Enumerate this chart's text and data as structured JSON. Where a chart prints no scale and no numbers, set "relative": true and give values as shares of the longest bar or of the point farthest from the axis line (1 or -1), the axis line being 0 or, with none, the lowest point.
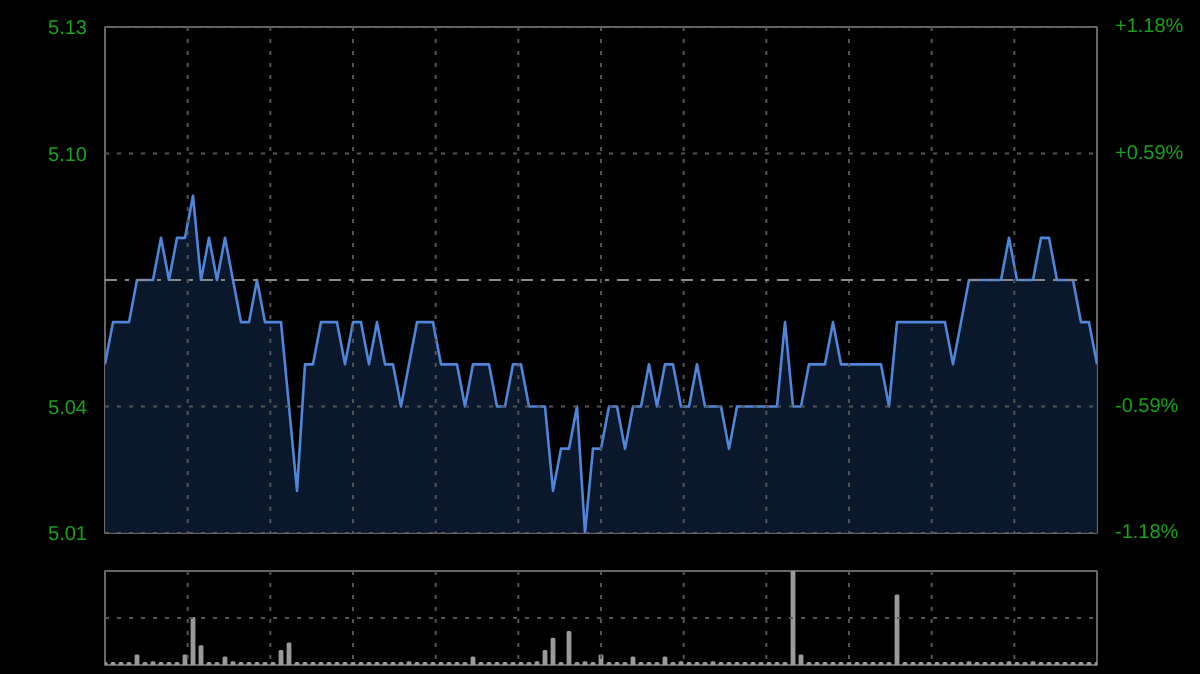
{
  "chart_data": [
    {
      "type": "area",
      "categories": [
        null,
        null,
        null,
        null,
        null,
        null,
        null,
        null,
        null,
        null,
        null,
        null,
        null,
        null,
        null,
        null,
        null,
        null,
        null,
        null,
        null,
        null,
        null,
        null,
        null,
        null,
        null,
        null,
        null,
        null,
        null,
        null,
        null,
        null,
        null,
        null,
        null,
        null,
        null,
        null,
        null,
        null,
        null,
        null,
        null,
        null,
        null,
        null,
        null,
        null,
        null,
        null,
        null,
        null,
        null,
        null,
        null,
        null,
        null,
        null,
        null,
        null,
        null,
        null,
        null,
        null,
        null,
        null,
        null,
        null,
        null,
        null,
        null,
        null,
        null,
        null,
        null,
        null,
        null,
        null,
        null,
        null,
        null,
        null,
        null,
        null,
        null,
        null,
        null,
        null,
        null,
        null,
        null,
        null,
        null,
        null,
        null,
        null,
        null,
        null,
        null,
        null,
        null,
        null,
        null,
        null,
        null,
        null,
        null,
        null,
        null,
        null,
        null,
        null,
        null,
        null,
        null,
        null,
        null,
        null,
        null,
        null,
        null,
        null,
        null
      ],
      "series": [
        {
          "color": "#4f86d9",
          "values": [
            5.05,
            5.06,
            5.06,
            5.06,
            5.07,
            5.07,
            5.07,
            5.08,
            5.07,
            5.08,
            5.08,
            5.09,
            5.07,
            5.08,
            5.07,
            5.08,
            5.07,
            5.06,
            5.06,
            5.07,
            5.06,
            5.06,
            5.06,
            5.04,
            5.02,
            5.05,
            5.05,
            5.06,
            5.06,
            5.06,
            5.05,
            5.06,
            5.06,
            5.05,
            5.06,
            5.05,
            5.05,
            5.04,
            5.05,
            5.06,
            5.06,
            5.06,
            5.05,
            5.05,
            5.05,
            5.04,
            5.05,
            5.05,
            5.05,
            5.04,
            5.04,
            5.05,
            5.05,
            5.04,
            5.04,
            5.04,
            5.02,
            5.03,
            5.03,
            5.04,
            5.01,
            5.03,
            5.03,
            5.04,
            5.04,
            5.03,
            5.04,
            5.04,
            5.05,
            5.04,
            5.05,
            5.05,
            5.04,
            5.04,
            5.05,
            5.04,
            5.04,
            5.04,
            5.03,
            5.04,
            5.04,
            5.04,
            5.04,
            5.04,
            5.04,
            5.06,
            5.04,
            5.04,
            5.05,
            5.05,
            5.05,
            5.06,
            5.05,
            5.05,
            5.05,
            5.05,
            5.05,
            5.05,
            5.04,
            5.06,
            5.06,
            5.06,
            5.06,
            5.06,
            5.06,
            5.06,
            5.05,
            5.06,
            5.07,
            5.07,
            5.07,
            5.07,
            5.07,
            5.08,
            5.07,
            5.07,
            5.07,
            5.08,
            5.08,
            5.07,
            5.07,
            5.07,
            5.06,
            5.06,
            5.05
          ]
        }
      ],
      "ylim": [
        5.01,
        5.13
      ],
      "yticks": [
        {
          "value": 5.01,
          "label": "5.01"
        },
        {
          "value": 5.04,
          "label": "5.04"
        },
        {
          "value": 5.1,
          "label": "5.10"
        },
        {
          "value": 5.13,
          "label": "5.13"
        }
      ],
      "y2lim": [
        -1.18,
        1.18
      ],
      "y2ticks": [
        {
          "value": -1.18,
          "label": "-1.18%"
        },
        {
          "value": -0.59,
          "label": "-0.59%"
        },
        {
          "value": 0.59,
          "label": "+0.59%"
        },
        {
          "value": 1.18,
          "label": "+1.18%"
        }
      ],
      "ref_lines": [
        {
          "axis": "y",
          "value": 5.07,
          "color": "#888888",
          "line_style": "dashdot"
        }
      ],
      "grid": true
    },
    {
      "type": "bar",
      "relative": true,
      "color": "#9a9a9a",
      "grid": true,
      "categories": [
        null,
        null,
        null,
        null,
        null,
        null,
        null,
        null,
        null,
        null,
        null,
        null,
        null,
        null,
        null,
        null,
        null,
        null,
        null,
        null,
        null,
        null,
        null,
        null,
        null,
        null,
        null,
        null,
        null,
        null,
        null,
        null,
        null,
        null,
        null,
        null,
        null,
        null,
        null,
        null,
        null,
        null,
        null,
        null,
        null,
        null,
        null,
        null,
        null,
        null,
        null,
        null,
        null,
        null,
        null,
        null,
        null,
        null,
        null,
        null,
        null,
        null,
        null,
        null,
        null,
        null,
        null,
        null,
        null,
        null,
        null,
        null,
        null,
        null,
        null,
        null,
        null,
        null,
        null,
        null,
        null,
        null,
        null,
        null,
        null,
        null,
        null,
        null,
        null,
        null,
        null,
        null,
        null,
        null,
        null,
        null,
        null,
        null,
        null,
        null,
        null,
        null,
        null,
        null,
        null,
        null,
        null,
        null,
        null,
        null,
        null,
        null,
        null,
        null,
        null,
        null,
        null,
        null,
        null,
        null,
        null,
        null,
        null,
        null,
        null
      ],
      "values": [
        0.02,
        0.02,
        0.02,
        0.02,
        0.1,
        0.02,
        0.03,
        0.02,
        0.02,
        0.02,
        0.1,
        0.5,
        0.2,
        0.02,
        0.02,
        0.08,
        0.03,
        0.02,
        0.02,
        0.02,
        0.02,
        0.02,
        0.15,
        0.23,
        0.02,
        0.02,
        0.02,
        0.02,
        0.02,
        0.02,
        0.02,
        0.02,
        0.02,
        0.02,
        0.02,
        0.02,
        0.02,
        0.02,
        0.03,
        0.02,
        0.02,
        0.02,
        0.02,
        0.02,
        0.02,
        0.02,
        0.08,
        0.02,
        0.02,
        0.02,
        0.02,
        0.02,
        0.02,
        0.02,
        0.03,
        0.15,
        0.28,
        0.02,
        0.35,
        0.02,
        0.03,
        0.02,
        0.1,
        0.02,
        0.02,
        0.02,
        0.08,
        0.02,
        0.02,
        0.02,
        0.08,
        0.02,
        0.03,
        0.02,
        0.02,
        0.02,
        0.03,
        0.02,
        0.02,
        0.02,
        0.02,
        0.02,
        0.02,
        0.02,
        0.02,
        0.02,
        1.0,
        0.1,
        0.02,
        0.02,
        0.02,
        0.02,
        0.02,
        0.02,
        0.02,
        0.02,
        0.02,
        0.02,
        0.02,
        0.74,
        0.02,
        0.02,
        0.02,
        0.02,
        0.02,
        0.02,
        0.02,
        0.02,
        0.03,
        0.02,
        0.02,
        0.02,
        0.02,
        0.03,
        0.02,
        0.02,
        0.03,
        0.02,
        0.02,
        0.02,
        0.02,
        0.02,
        0.02,
        0.02,
        0.02
      ]
    }
  ]
}
